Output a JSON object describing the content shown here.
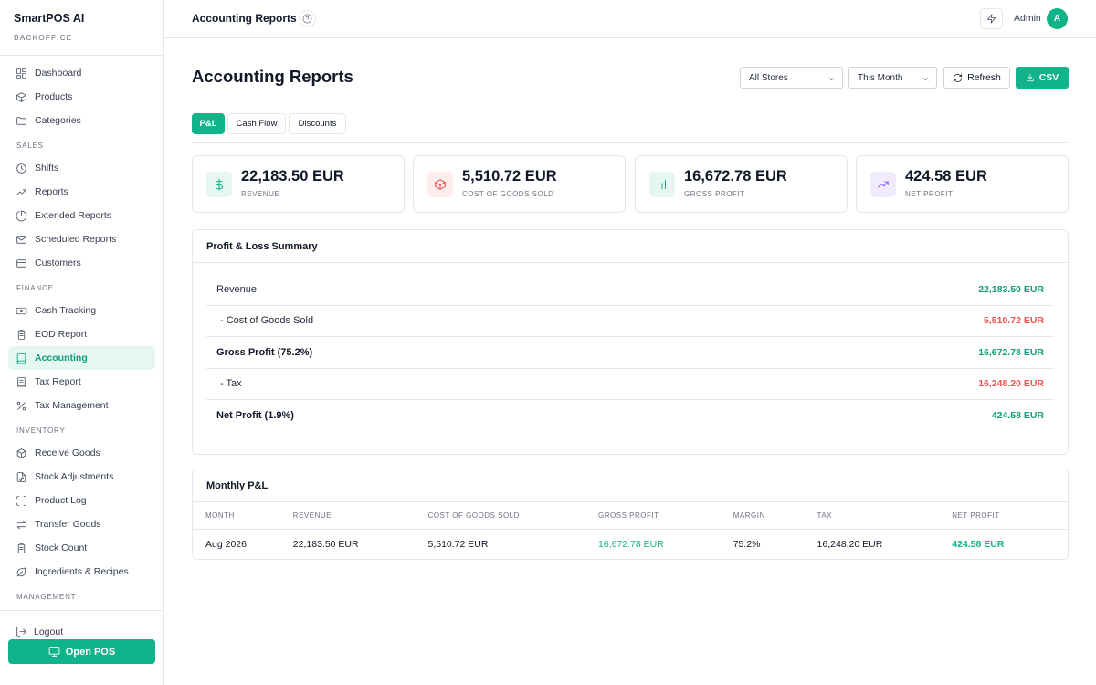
{
  "app": {
    "name": "SmartPOS AI",
    "subtitle": "BACKOFFICE"
  },
  "sidebar": {
    "items": [
      {
        "type": "item",
        "label": "Dashboard",
        "icon": "dashboard-icon",
        "active": false
      },
      {
        "type": "item",
        "label": "Products",
        "icon": "box-icon",
        "active": false
      },
      {
        "type": "item",
        "label": "Categories",
        "icon": "folder-icon",
        "active": false
      },
      {
        "type": "section",
        "label": "SALES"
      },
      {
        "type": "item",
        "label": "Shifts",
        "icon": "clock-icon",
        "active": false
      },
      {
        "type": "item",
        "label": "Reports",
        "icon": "trending-up-icon",
        "active": false
      },
      {
        "type": "item",
        "label": "Extended Reports",
        "icon": "pie-chart-icon",
        "active": false
      },
      {
        "type": "item",
        "label": "Scheduled Reports",
        "icon": "mail-icon",
        "active": false
      },
      {
        "type": "item",
        "label": "Customers",
        "icon": "card-icon",
        "active": false
      },
      {
        "type": "section",
        "label": "FINANCE"
      },
      {
        "type": "item",
        "label": "Cash Tracking",
        "icon": "banknote-icon",
        "active": false
      },
      {
        "type": "item",
        "label": "EOD Report",
        "icon": "clipboard-icon",
        "active": false
      },
      {
        "type": "item",
        "label": "Accounting",
        "icon": "book-icon",
        "active": true
      },
      {
        "type": "item",
        "label": "Tax Report",
        "icon": "receipt-icon",
        "active": false
      },
      {
        "type": "item",
        "label": "Tax Management",
        "icon": "percent-icon",
        "active": false
      },
      {
        "type": "section",
        "label": "INVENTORY"
      },
      {
        "type": "item",
        "label": "Receive Goods",
        "icon": "boxes-icon",
        "active": false
      },
      {
        "type": "item",
        "label": "Stock Adjustments",
        "icon": "file-edit-icon",
        "active": false
      },
      {
        "type": "item",
        "label": "Product Log",
        "icon": "scan-icon",
        "active": false
      },
      {
        "type": "item",
        "label": "Transfer Goods",
        "icon": "arrows-icon",
        "active": false
      },
      {
        "type": "item",
        "label": "Stock Count",
        "icon": "clipboard-list-icon",
        "active": false
      },
      {
        "type": "item",
        "label": "Ingredients & Recipes",
        "icon": "leaf-icon",
        "active": false
      },
      {
        "type": "section",
        "label": "MANAGEMENT"
      }
    ],
    "logout_label": "Logout",
    "open_pos_label": "Open POS"
  },
  "topbar": {
    "title": "Accounting Reports",
    "user_name": "Admin",
    "avatar_initial": "A"
  },
  "page": {
    "title": "Accounting Reports",
    "store_select": "All Stores",
    "period_select": "This Month",
    "refresh_label": "Refresh",
    "csv_label": "CSV",
    "tabs": [
      {
        "label": "P&L",
        "active": true
      },
      {
        "label": "Cash Flow",
        "active": false
      },
      {
        "label": "Discounts",
        "active": false
      }
    ]
  },
  "stats": [
    {
      "value": "22,183.50 EUR",
      "label": "REVENUE",
      "icon": "dollar-icon",
      "color": "#10b38a",
      "bg": "#e6f6f1"
    },
    {
      "value": "5,510.72 EUR",
      "label": "COST OF GOODS SOLD",
      "icon": "box-icon",
      "color": "#ef4444",
      "bg": "#fdecec"
    },
    {
      "value": "16,672.78 EUR",
      "label": "GROSS PROFIT",
      "icon": "bar-chart-icon",
      "color": "#10b38a",
      "bg": "#e6f6f1"
    },
    {
      "value": "424.58 EUR",
      "label": "NET PROFIT",
      "icon": "trending-up-icon",
      "color": "#8b5cf6",
      "bg": "#f1ecfd"
    }
  ],
  "pl_summary": {
    "title": "Profit & Loss Summary",
    "rows": [
      {
        "label": "Revenue",
        "value": "22,183.50 EUR",
        "bold": false,
        "indent": false,
        "color": "#0f9e7b"
      },
      {
        "label": "- Cost of Goods Sold",
        "value": "5,510.72 EUR",
        "bold": false,
        "indent": true,
        "color": "#ef5350"
      },
      {
        "label": "Gross Profit (75.2%)",
        "value": "16,672.78 EUR",
        "bold": true,
        "indent": false,
        "color": "#0f9e7b"
      },
      {
        "label": "- Tax",
        "value": "16,248.20 EUR",
        "bold": false,
        "indent": true,
        "color": "#ef5350"
      },
      {
        "label": "Net Profit (1.9%)",
        "value": "424.58 EUR",
        "bold": true,
        "indent": false,
        "color": "#0f9e7b"
      }
    ]
  },
  "monthly": {
    "title": "Monthly P&L",
    "columns": [
      "MONTH",
      "REVENUE",
      "COST OF GOODS SOLD",
      "GROSS PROFIT",
      "MARGIN",
      "TAX",
      "NET PROFIT"
    ],
    "rows": [
      [
        "Aug 2026",
        "22,183.50 EUR",
        "5,510.72 EUR",
        "16,672.78 EUR",
        "75.2%",
        "16,248.20 EUR",
        "424.58 EUR"
      ]
    ]
  },
  "colors": {
    "accent": "#10b38a",
    "negative": "#ef5350"
  }
}
